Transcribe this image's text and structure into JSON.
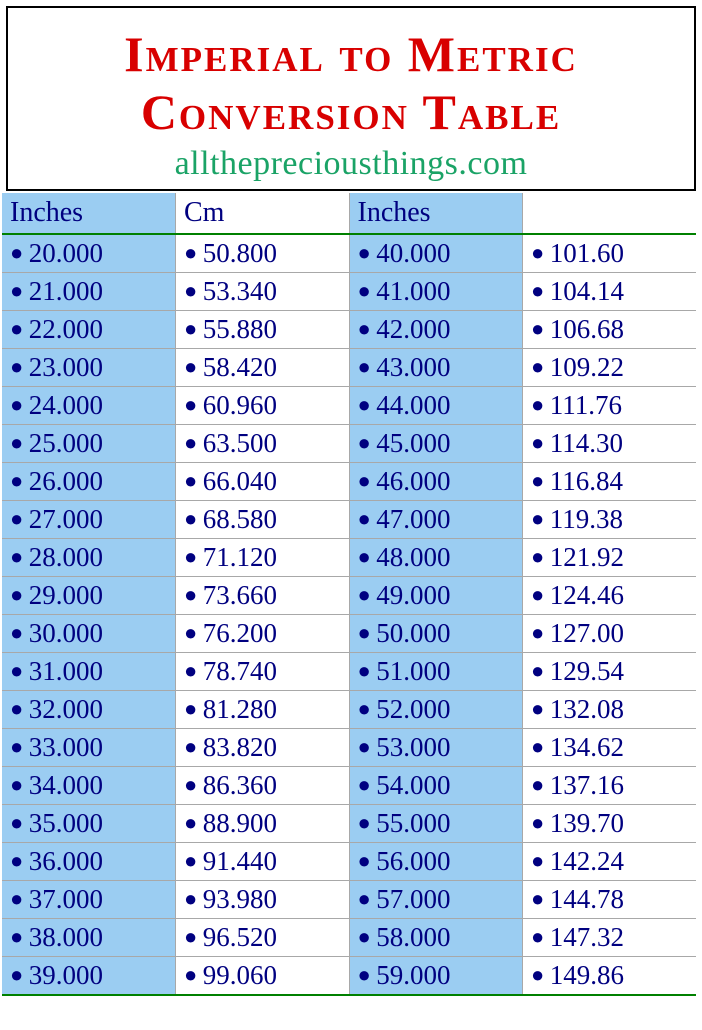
{
  "title": "Imperial to Metric Conversion Table",
  "subtitle": "allthepreciousthings.com",
  "colors": {
    "title": "#d80000",
    "subtitle": "#1aa366",
    "cell_text": "#000080",
    "stripe_blue": "#9bcdf2",
    "stripe_white": "#ffffff",
    "header_rule": "#008000",
    "grid": "#a8a8a8"
  },
  "typography": {
    "title_fontsize": 50,
    "subtitle_fontsize": 34,
    "header_fontsize": 28,
    "cell_fontsize": 27,
    "font_family": "Times New Roman"
  },
  "table": {
    "columns": [
      {
        "label": "Inches",
        "stripe": "blue"
      },
      {
        "label": "Cm",
        "stripe": "white"
      },
      {
        "label": "Inches",
        "stripe": "blue"
      },
      {
        "label": "",
        "stripe": "white"
      }
    ],
    "rows": [
      [
        "20.000",
        "50.800",
        "40.000",
        "101.60"
      ],
      [
        "21.000",
        "53.340",
        "41.000",
        "104.14"
      ],
      [
        "22.000",
        "55.880",
        "42.000",
        "106.68"
      ],
      [
        "23.000",
        "58.420",
        "43.000",
        "109.22"
      ],
      [
        "24.000",
        "60.960",
        "44.000",
        "111.76"
      ],
      [
        "25.000",
        "63.500",
        "45.000",
        "114.30"
      ],
      [
        "26.000",
        "66.040",
        "46.000",
        "116.84"
      ],
      [
        "27.000",
        "68.580",
        "47.000",
        "119.38"
      ],
      [
        "28.000",
        "71.120",
        "48.000",
        "121.92"
      ],
      [
        "29.000",
        "73.660",
        "49.000",
        "124.46"
      ],
      [
        "30.000",
        "76.200",
        "50.000",
        "127.00"
      ],
      [
        "31.000",
        "78.740",
        "51.000",
        "129.54"
      ],
      [
        "32.000",
        "81.280",
        "52.000",
        "132.08"
      ],
      [
        "33.000",
        "83.820",
        "53.000",
        "134.62"
      ],
      [
        "34.000",
        "86.360",
        "54.000",
        "137.16"
      ],
      [
        "35.000",
        "88.900",
        "55.000",
        "139.70"
      ],
      [
        "36.000",
        "91.440",
        "56.000",
        "142.24"
      ],
      [
        "37.000",
        "93.980",
        "57.000",
        "144.78"
      ],
      [
        "38.000",
        "96.520",
        "58.000",
        "147.32"
      ],
      [
        "39.000",
        "99.060",
        "59.000",
        "149.86"
      ]
    ]
  }
}
